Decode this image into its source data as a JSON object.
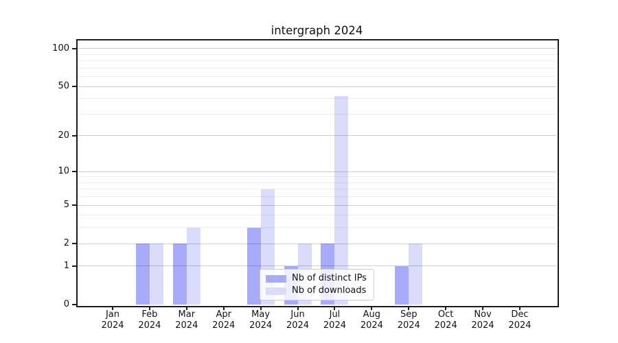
{
  "title": "intergraph 2024",
  "chart_data": {
    "type": "bar",
    "title": "intergraph 2024",
    "categories": [
      "Jan 2024",
      "Feb 2024",
      "Mar 2024",
      "Apr 2024",
      "May 2024",
      "Jun 2024",
      "Jul 2024",
      "Aug 2024",
      "Sep 2024",
      "Oct 2024",
      "Nov 2024",
      "Dec 2024"
    ],
    "months": [
      "Jan",
      "Feb",
      "Mar",
      "Apr",
      "May",
      "Jun",
      "Jul",
      "Aug",
      "Sep",
      "Oct",
      "Nov",
      "Dec"
    ],
    "year": "2024",
    "series": [
      {
        "name": "Nb of distinct IPs",
        "values": [
          0,
          2,
          2,
          0,
          3,
          1,
          2,
          0,
          1,
          0,
          0,
          0
        ],
        "bar_fill": "rgba(0,8,235,0.34)",
        "swatch_color": "#a8abf8"
      },
      {
        "name": "Nb of downloads",
        "values": [
          0,
          2,
          3,
          0,
          7,
          2,
          42,
          0,
          2,
          0,
          0,
          0
        ],
        "bar_fill": "rgba(0,8,235,0.14)",
        "swatch_color": "#dbdcfa"
      }
    ],
    "xlabel": "",
    "ylabel": "",
    "y_scale": "log1p",
    "ylim": [
      0,
      116
    ],
    "y_ticks": [
      0,
      1,
      2,
      5,
      10,
      20,
      50,
      100
    ],
    "y_minor_ticks": [
      3,
      4,
      6,
      7,
      8,
      9,
      30,
      40,
      60,
      70,
      80,
      90
    ],
    "grid": true,
    "legend_position": "lower center"
  },
  "colors": {
    "major_grid": "#cdcdcd",
    "minor_grid": "#ededed",
    "spine": "#1c1c1c",
    "background": "#ffffff"
  }
}
